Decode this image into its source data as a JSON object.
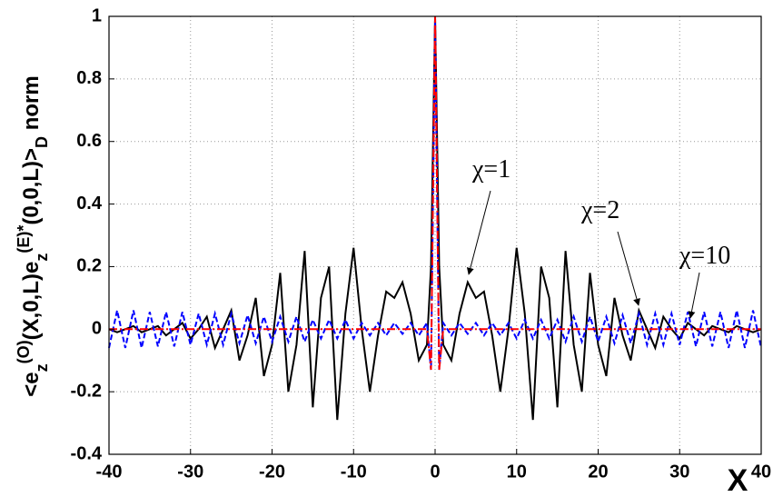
{
  "chart_data": {
    "type": "line",
    "ylabel": [
      {
        "text": "<e"
      },
      {
        "text": "z",
        "shift": "sub"
      },
      {
        "text": "(O)",
        "shift": "sup"
      },
      {
        "text": "(X,0,L)e"
      },
      {
        "text": "z",
        "shift": "sub"
      },
      {
        "text": "(E)*",
        "shift": "sup"
      },
      {
        "text": "(0,0,L)>"
      },
      {
        "text": "D",
        "shift": "sub"
      },
      {
        "text": " norm"
      }
    ],
    "xlabel": "X",
    "annotations": [
      "χ=1",
      "χ=2",
      "χ=10"
    ],
    "xlim": [
      -40,
      40
    ],
    "ylim": [
      -0.4,
      1
    ],
    "xticks": [
      -40,
      -30,
      -20,
      -10,
      0,
      10,
      20,
      30,
      40
    ],
    "yticks": [
      -0.4,
      -0.2,
      0,
      0.2,
      0.4,
      0.6,
      0.8,
      1
    ],
    "grid": true,
    "x": [
      -40,
      -39,
      -38,
      -37,
      -36,
      -35,
      -34,
      -33,
      -32,
      -31,
      -30,
      -29,
      -28,
      -27,
      -26,
      -25,
      -24,
      -23,
      -22,
      -21,
      -20,
      -19,
      -18,
      -17,
      -16,
      -15,
      -14,
      -13,
      -12,
      -11,
      -10,
      -9,
      -8,
      -7,
      -6,
      -5,
      -4,
      -3,
      -2,
      -1,
      -0.5,
      0,
      0.5,
      1,
      2,
      3,
      4,
      5,
      6,
      7,
      8,
      9,
      10,
      11,
      12,
      13,
      14,
      15,
      16,
      17,
      18,
      19,
      20,
      21,
      22,
      23,
      24,
      25,
      26,
      27,
      28,
      29,
      30,
      31,
      32,
      33,
      34,
      35,
      36,
      37,
      38,
      39,
      40
    ],
    "series": [
      {
        "color": "#000000",
        "dash": "none",
        "values": [
          0,
          -0.01,
          0,
          0.01,
          -0.01,
          0,
          0.01,
          -0.02,
          0,
          0.02,
          -0.03,
          0,
          0.04,
          -0.06,
          0,
          0.06,
          -0.1,
          -0.02,
          0.1,
          -0.15,
          -0.05,
          0.18,
          -0.2,
          -0.05,
          0.25,
          -0.25,
          0.1,
          0.2,
          -0.29,
          0.05,
          0.26,
          0,
          -0.2,
          -0.02,
          0.12,
          0.1,
          0.15,
          0.05,
          -0.1,
          -0.05,
          0.2,
          1,
          0.2,
          -0.05,
          -0.1,
          0.05,
          0.15,
          0.1,
          0.12,
          -0.02,
          -0.2,
          0,
          0.26,
          0.05,
          -0.29,
          0.2,
          0.1,
          -0.25,
          0.25,
          -0.05,
          -0.2,
          0.18,
          -0.05,
          -0.15,
          0.1,
          -0.02,
          -0.1,
          0.06,
          0,
          -0.06,
          0.04,
          0,
          -0.03,
          0.02,
          0,
          -0.02,
          0.01,
          0,
          -0.01,
          0.01,
          0,
          -0.01,
          0
        ]
      },
      {
        "color": "#0000ff",
        "dash": "6,3",
        "values": [
          -0.06,
          0.06,
          -0.06,
          0.06,
          -0.06,
          0.055,
          -0.055,
          0.055,
          -0.055,
          0.055,
          -0.05,
          0.05,
          -0.05,
          0.05,
          -0.05,
          0.05,
          -0.045,
          0.045,
          -0.045,
          0.04,
          -0.04,
          0.04,
          -0.04,
          0.04,
          -0.04,
          0.03,
          -0.03,
          0.03,
          -0.03,
          0.03,
          -0.03,
          0.02,
          -0.02,
          0.02,
          -0.02,
          0.02,
          -0.015,
          0.02,
          -0.02,
          0.02,
          -0.13,
          0.98,
          -0.13,
          0.02,
          -0.02,
          0.02,
          -0.015,
          0.02,
          -0.02,
          0.02,
          -0.02,
          0.02,
          -0.03,
          0.03,
          -0.03,
          0.03,
          -0.03,
          0.03,
          -0.04,
          0.04,
          -0.04,
          0.04,
          -0.04,
          0.04,
          -0.045,
          0.045,
          -0.045,
          0.05,
          -0.05,
          0.05,
          -0.05,
          0.05,
          -0.05,
          0.055,
          -0.055,
          0.055,
          -0.055,
          0.055,
          -0.06,
          0.06,
          -0.06,
          0.06,
          -0.06
        ]
      },
      {
        "color": "#ff0000",
        "dash": "9,3,2,3",
        "values": [
          0,
          0,
          0,
          0,
          0,
          0,
          0,
          0,
          0,
          0,
          0,
          0,
          0,
          0,
          0,
          0,
          0,
          0,
          0,
          0,
          0,
          0,
          0,
          0,
          0,
          0,
          0,
          0,
          0,
          0,
          0,
          0,
          0,
          0,
          0,
          0,
          0,
          0,
          0,
          0,
          -0.13,
          1,
          -0.13,
          0,
          0,
          0,
          0,
          0,
          0,
          0,
          0,
          0,
          0,
          0,
          0,
          0,
          0,
          0,
          0,
          0,
          0,
          0,
          0,
          0,
          0,
          0,
          0,
          0,
          0,
          0,
          0,
          0,
          0,
          0,
          0,
          0,
          0,
          0,
          0,
          0,
          0,
          0,
          0
        ]
      }
    ]
  }
}
